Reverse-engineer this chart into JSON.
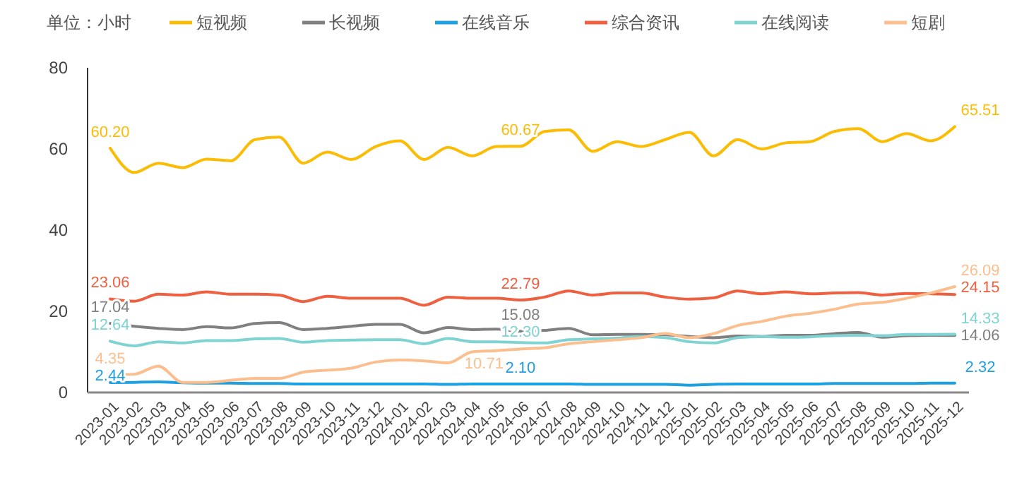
{
  "chart_data": {
    "type": "line",
    "ylabel": "单位：小时",
    "categories": [
      "2023-01",
      "2023-02",
      "2023-03",
      "2023-04",
      "2023-05",
      "2023-06",
      "2023-07",
      "2023-08",
      "2023-09",
      "2023-10",
      "2023-11",
      "2023-12",
      "2024-01",
      "2024-02",
      "2024-03",
      "2024-04",
      "2024-05",
      "2024-06",
      "2024-07",
      "2024-08",
      "2024-09",
      "2024-10",
      "2024-11",
      "2024-12",
      "2025-01",
      "2025-02",
      "2025-03",
      "2025-04",
      "2025-05",
      "2025-06",
      "2025-07",
      "2025-08",
      "2025-09",
      "2025-10",
      "2025-11",
      "2025-12"
    ],
    "series": [
      {
        "name": "短视频",
        "color": "#fbbc05",
        "values": [
          60.2,
          54.2,
          56.5,
          55.4,
          57.5,
          57.1,
          62.3,
          62.9,
          56.5,
          59.2,
          57.4,
          60.6,
          62,
          57.4,
          60.4,
          58.3,
          60.6,
          60.67,
          64.3,
          64.7,
          59.4,
          61.8,
          60.6,
          62.3,
          64.1,
          58.3,
          62.3,
          60,
          61.5,
          61.8,
          64.3,
          65,
          61.8,
          63.8,
          62,
          65.51
        ],
        "value_labels": [
          "60.20",
          null,
          null,
          null,
          null,
          null,
          null,
          null,
          null,
          null,
          null,
          null,
          null,
          null,
          null,
          null,
          null,
          "60.67",
          null,
          null,
          null,
          null,
          null,
          null,
          null,
          null,
          null,
          null,
          null,
          null,
          null,
          null,
          null,
          null,
          null,
          "65.51"
        ]
      },
      {
        "name": "长视频",
        "color": "#808080",
        "values": [
          17.04,
          16.3,
          15.8,
          15.5,
          16.2,
          15.9,
          17,
          17.2,
          15.5,
          15.8,
          16.3,
          16.8,
          16.8,
          14.7,
          16,
          15.5,
          15.6,
          15.08,
          15.3,
          15.8,
          14.2,
          14.3,
          14.3,
          14.2,
          13.8,
          13.5,
          13.9,
          13.8,
          14.1,
          14.1,
          14.5,
          14.8,
          13.6,
          14,
          14.1,
          14.06
        ],
        "value_labels": [
          "17.04",
          null,
          null,
          null,
          null,
          null,
          null,
          null,
          null,
          null,
          null,
          null,
          null,
          null,
          null,
          null,
          null,
          "15.08",
          null,
          null,
          null,
          null,
          null,
          null,
          null,
          null,
          null,
          null,
          null,
          null,
          null,
          null,
          null,
          null,
          null,
          "14.06"
        ]
      },
      {
        "name": "在线音乐",
        "color": "#1ea0e0",
        "values": [
          2.44,
          2.5,
          2.6,
          2.4,
          2.3,
          2.3,
          2.2,
          2.2,
          2.1,
          2.1,
          2.1,
          2.1,
          2.1,
          2.1,
          2,
          2.1,
          2.1,
          2.1,
          2.1,
          2.1,
          2,
          2,
          2,
          2,
          1.8,
          2,
          2.1,
          2.1,
          2.1,
          2.1,
          2.2,
          2.2,
          2.2,
          2.2,
          2.3,
          2.32
        ],
        "value_labels": [
          "2.44",
          null,
          null,
          null,
          null,
          null,
          null,
          null,
          null,
          null,
          null,
          null,
          null,
          null,
          null,
          null,
          null,
          "2.10",
          null,
          null,
          null,
          null,
          null,
          null,
          null,
          null,
          null,
          null,
          null,
          null,
          null,
          null,
          null,
          null,
          null,
          "2.32"
        ]
      },
      {
        "name": "综合资讯",
        "color": "#ee6040",
        "values": [
          23.06,
          22.5,
          24.2,
          24,
          24.8,
          24.2,
          24.2,
          24,
          22.4,
          23.7,
          23.2,
          23.2,
          23.2,
          21.5,
          23.5,
          23.2,
          23.2,
          22.79,
          23.5,
          25,
          24,
          24.5,
          24.5,
          23.5,
          23,
          23.3,
          25,
          24.3,
          24.8,
          24.3,
          24.5,
          24.6,
          24,
          24.4,
          24.3,
          24.15
        ],
        "value_labels": [
          "23.06",
          null,
          null,
          null,
          null,
          null,
          null,
          null,
          null,
          null,
          null,
          null,
          null,
          null,
          null,
          null,
          null,
          "22.79",
          null,
          null,
          null,
          null,
          null,
          null,
          null,
          null,
          null,
          null,
          null,
          null,
          null,
          null,
          null,
          null,
          null,
          "24.15"
        ]
      },
      {
        "name": "在线阅读",
        "color": "#7fd3d3",
        "values": [
          12.64,
          11.5,
          12.5,
          12.2,
          12.8,
          12.8,
          13.2,
          13.3,
          12.4,
          12.8,
          12.9,
          13,
          13,
          12,
          13.3,
          12.5,
          12.5,
          12.3,
          12.2,
          13,
          13.2,
          13.4,
          13.8,
          13.5,
          12.5,
          12.2,
          13.5,
          13.8,
          13.6,
          13.7,
          14,
          14.1,
          14,
          14.3,
          14.3,
          14.33
        ],
        "value_labels": [
          "12.64",
          null,
          null,
          null,
          null,
          null,
          null,
          null,
          null,
          null,
          null,
          null,
          null,
          null,
          null,
          null,
          null,
          "12.30",
          null,
          null,
          null,
          null,
          null,
          null,
          null,
          null,
          null,
          null,
          null,
          null,
          null,
          null,
          null,
          null,
          null,
          "14.33"
        ]
      },
      {
        "name": "短剧",
        "color": "#fbbf8f",
        "values": [
          4.35,
          4.5,
          6.5,
          2.5,
          2.5,
          3,
          3.5,
          3.5,
          5,
          5.5,
          6,
          7.5,
          8,
          7.8,
          7.3,
          10,
          10.3,
          10.71,
          11,
          12,
          12.5,
          13,
          13.5,
          14.5,
          13.5,
          14.5,
          16.5,
          17.5,
          18.8,
          19.5,
          20.5,
          21.8,
          22.2,
          23.2,
          24.5,
          26.09
        ],
        "value_labels": [
          "4.35",
          null,
          null,
          null,
          null,
          null,
          null,
          null,
          null,
          null,
          null,
          null,
          null,
          null,
          null,
          null,
          null,
          "10.71",
          null,
          null,
          null,
          null,
          null,
          null,
          null,
          null,
          null,
          null,
          null,
          null,
          null,
          null,
          null,
          null,
          null,
          "26.09"
        ]
      }
    ],
    "ylim": [
      0,
      80
    ],
    "yticks": [
      0,
      20,
      40,
      60,
      80
    ],
    "legend": "top",
    "marker": "none",
    "line_style": "solid"
  }
}
